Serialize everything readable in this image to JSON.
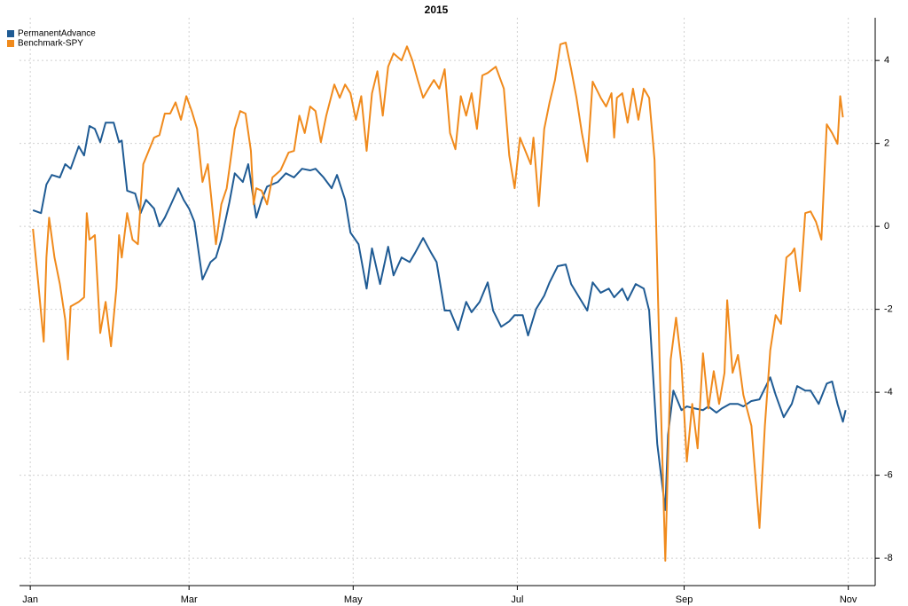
{
  "chart_data": {
    "type": "line",
    "title": "2015",
    "xlim": [
      -3,
      315
    ],
    "xticks": [
      {
        "value": 1,
        "label": "Jan"
      },
      {
        "value": 60,
        "label": "Mar"
      },
      {
        "value": 121,
        "label": "May"
      },
      {
        "value": 182,
        "label": "Jul"
      },
      {
        "value": 244,
        "label": "Sep"
      },
      {
        "value": 305,
        "label": "Nov"
      }
    ],
    "ylim": [
      -8.66,
      5.03
    ],
    "yticks": [
      -8,
      -6,
      -4,
      -2,
      0,
      2,
      4
    ],
    "grid": true,
    "legend": "top-left",
    "series": [
      {
        "name": "PermanentAdvance",
        "color": "#1f5b94",
        "x": [
          2,
          5,
          7,
          9,
          12,
          14,
          16,
          19,
          21,
          23,
          25,
          27,
          29,
          32,
          34,
          35,
          37,
          40,
          42,
          44,
          47,
          49,
          51,
          53,
          56,
          58,
          60,
          62,
          65,
          68,
          70,
          72,
          75,
          77,
          80,
          82,
          85,
          87,
          89,
          93,
          96,
          99,
          102,
          105,
          107,
          110,
          113,
          115,
          118,
          120,
          123,
          126,
          128,
          131,
          134,
          136,
          139,
          142,
          144,
          147,
          150,
          152,
          155,
          157,
          160,
          163,
          165,
          168,
          171,
          173,
          176,
          179,
          181,
          184,
          186,
          189,
          192,
          194,
          197,
          200,
          202,
          205,
          208,
          210,
          213,
          216,
          218,
          221,
          223,
          226,
          229,
          231,
          234,
          237,
          238,
          240,
          243,
          245,
          248,
          251,
          253,
          256,
          258,
          261,
          264,
          266,
          269,
          272,
          276,
          278,
          281,
          284,
          286,
          289,
          291,
          294,
          297,
          299,
          301,
          303,
          304
        ],
        "values": [
          0.39,
          0.32,
          1.01,
          1.24,
          1.18,
          1.5,
          1.39,
          1.93,
          1.71,
          2.42,
          2.35,
          2.03,
          2.5,
          2.5,
          2.03,
          2.07,
          0.86,
          0.79,
          0.32,
          0.64,
          0.43,
          0,
          0.21,
          0.49,
          0.92,
          0.64,
          0.43,
          0.11,
          -1.28,
          -0.86,
          -0.75,
          -0.32,
          0.58,
          1.28,
          1.07,
          1.5,
          0.21,
          0.64,
          0.96,
          1.07,
          1.28,
          1.18,
          1.39,
          1.35,
          1.39,
          1.18,
          0.92,
          1.24,
          0.64,
          -0.15,
          -0.43,
          -1.5,
          -0.53,
          -1.39,
          -0.49,
          -1.18,
          -0.75,
          -0.86,
          -0.64,
          -0.28,
          -0.64,
          -0.86,
          -2.03,
          -2.03,
          -2.5,
          -1.82,
          -2.07,
          -1.82,
          -1.35,
          -2.03,
          -2.42,
          -2.29,
          -2.14,
          -2.14,
          -2.63,
          -1.99,
          -1.67,
          -1.35,
          -0.96,
          -0.92,
          -1.39,
          -1.71,
          -2.03,
          -1.35,
          -1.6,
          -1.5,
          -1.71,
          -1.5,
          -1.78,
          -1.39,
          -1.5,
          -2.03,
          -5.24,
          -6.84,
          -5.03,
          -3.96,
          -4.43,
          -4.34,
          -4.39,
          -4.43,
          -4.34,
          -4.49,
          -4.39,
          -4.28,
          -4.28,
          -4.34,
          -4.21,
          -4.17,
          -3.64,
          -4.06,
          -4.6,
          -4.28,
          -3.85,
          -3.96,
          -3.96,
          -4.28,
          -3.79,
          -3.74,
          -4.28,
          -4.71,
          -4.43
        ]
      },
      {
        "name": "Benchmark-SPY",
        "color": "#f08a1c",
        "x": [
          2,
          4,
          6,
          7,
          8,
          10,
          12,
          14,
          15,
          16,
          19,
          21,
          22,
          23,
          25,
          27,
          29,
          31,
          33,
          34,
          35,
          37,
          39,
          41,
          43,
          45,
          47,
          49,
          51,
          53,
          55,
          57,
          59,
          61,
          63,
          65,
          67,
          69,
          70,
          72,
          74,
          75,
          77,
          79,
          81,
          83,
          84,
          85,
          87,
          89,
          91,
          94,
          97,
          99,
          101,
          103,
          105,
          107,
          109,
          111,
          114,
          116,
          118,
          120,
          122,
          124,
          126,
          128,
          130,
          132,
          134,
          136,
          139,
          141,
          143,
          145,
          147,
          149,
          151,
          153,
          155,
          157,
          159,
          161,
          163,
          165,
          167,
          169,
          171,
          174,
          177,
          179,
          181,
          183,
          185,
          187,
          188,
          190,
          192,
          194,
          196,
          198,
          200,
          202,
          204,
          206,
          208,
          210,
          213,
          215,
          217,
          218,
          219,
          221,
          223,
          225,
          227,
          229,
          231,
          233,
          235,
          237,
          239,
          241,
          243,
          245,
          247,
          249,
          251,
          253,
          255,
          257,
          259,
          260,
          262,
          264,
          266,
          269,
          272,
          274,
          276,
          278,
          280,
          282,
          284,
          285,
          287,
          289,
          291,
          293,
          295,
          297,
          299,
          301,
          302,
          303
        ],
        "values": [
          -0.06,
          -1.39,
          -2.78,
          -0.75,
          0.21,
          -0.75,
          -1.39,
          -2.25,
          -3.21,
          -1.93,
          -1.82,
          -1.71,
          0.32,
          -0.32,
          -0.21,
          -2.57,
          -1.82,
          -2.89,
          -1.5,
          -0.21,
          -0.75,
          0.32,
          -0.32,
          -0.43,
          1.5,
          1.82,
          2.14,
          2.2,
          2.72,
          2.72,
          2.99,
          2.57,
          3.14,
          2.78,
          2.35,
          1.07,
          1.5,
          0.21,
          -0.43,
          0.53,
          0.92,
          1.39,
          2.35,
          2.78,
          2.72,
          1.82,
          0.53,
          0.92,
          0.86,
          0.53,
          1.18,
          1.35,
          1.78,
          1.82,
          2.67,
          2.25,
          2.89,
          2.78,
          2.03,
          2.67,
          3.42,
          3.1,
          3.42,
          3.21,
          2.57,
          3.14,
          1.82,
          3.21,
          3.74,
          2.67,
          3.85,
          4.17,
          4.0,
          4.34,
          4.0,
          3.53,
          3.1,
          3.32,
          3.53,
          3.32,
          3.79,
          2.25,
          1.86,
          3.14,
          2.67,
          3.21,
          2.35,
          3.64,
          3.7,
          3.85,
          3.32,
          1.71,
          0.92,
          2.14,
          1.82,
          1.5,
          2.14,
          0.49,
          2.35,
          2.99,
          3.53,
          4.39,
          4.43,
          3.79,
          3.1,
          2.25,
          1.56,
          3.49,
          3.1,
          2.89,
          3.21,
          2.14,
          3.1,
          3.21,
          2.5,
          3.32,
          2.57,
          3.32,
          3.1,
          1.6,
          -3.53,
          -8.06,
          -3.21,
          -2.2,
          -3.32,
          -5.67,
          -4.28,
          -5.35,
          -3.06,
          -4.39,
          -3.49,
          -4.28,
          -3.53,
          -1.78,
          -3.53,
          -3.1,
          -4.06,
          -4.81,
          -7.27,
          -4.81,
          -2.99,
          -2.14,
          -2.35,
          -0.75,
          -0.64,
          -0.53,
          -1.56,
          0.32,
          0.36,
          0.11,
          -0.32,
          2.46,
          2.25,
          1.99,
          3.14,
          2.63
        ]
      }
    ]
  }
}
